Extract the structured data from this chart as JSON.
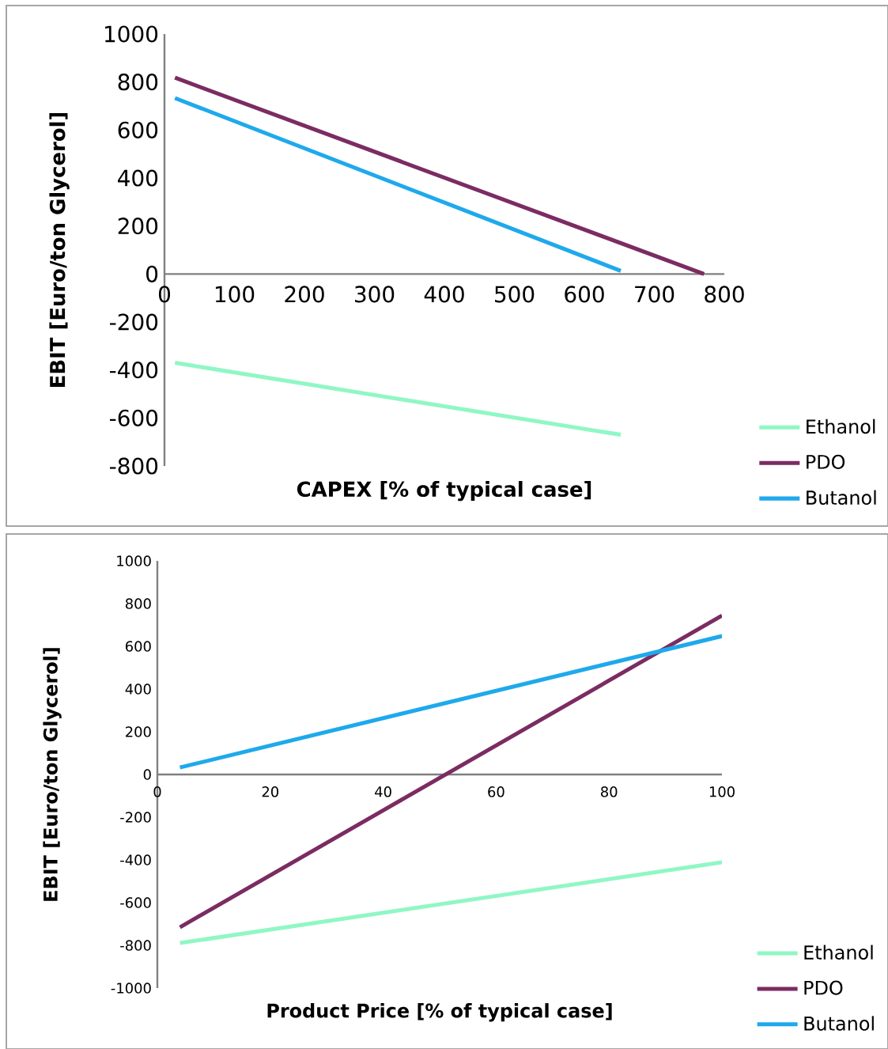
{
  "chart_data": [
    {
      "type": "line",
      "xlabel": "CAPEX [% of typical case]",
      "ylabel": "EBIT [Euro/ton Glycerol]",
      "xlim": [
        0,
        800
      ],
      "ylim": [
        -800,
        1000
      ],
      "xticks": [
        0,
        100,
        200,
        300,
        400,
        500,
        600,
        700,
        800
      ],
      "yticks": [
        -800,
        -600,
        -400,
        -200,
        0,
        200,
        400,
        600,
        800,
        1000
      ],
      "legend": "bottom right",
      "series": [
        {
          "name": "Ethanol",
          "color": "#90f7c4",
          "x": [
            15,
            652
          ],
          "values": [
            -370,
            -670
          ]
        },
        {
          "name": "PDO",
          "color": "#7b2c62",
          "x": [
            15,
            771
          ],
          "values": [
            818,
            0
          ]
        },
        {
          "name": "Butanol",
          "color": "#1fa9ec",
          "x": [
            15,
            652
          ],
          "values": [
            733,
            13
          ]
        }
      ]
    },
    {
      "type": "line",
      "xlabel": "Product Price [% of typical case]",
      "ylabel": "EBIT [Euro/ton Glycerol]",
      "xlim": [
        0,
        100
      ],
      "ylim": [
        -1000,
        1000
      ],
      "xticks": [
        0,
        20,
        40,
        60,
        80,
        100
      ],
      "yticks": [
        -1000,
        -800,
        -600,
        -400,
        -200,
        0,
        200,
        400,
        600,
        800,
        1000
      ],
      "legend": "bottom right",
      "series": [
        {
          "name": "Ethanol",
          "color": "#90f7c4",
          "x": [
            4,
            100
          ],
          "values": [
            -789,
            -411
          ]
        },
        {
          "name": "PDO",
          "color": "#7b2c62",
          "x": [
            4,
            100
          ],
          "values": [
            -715,
            744
          ]
        },
        {
          "name": "Butanol",
          "color": "#1fa9ec",
          "x": [
            4,
            100
          ],
          "values": [
            33,
            648
          ]
        }
      ]
    }
  ]
}
